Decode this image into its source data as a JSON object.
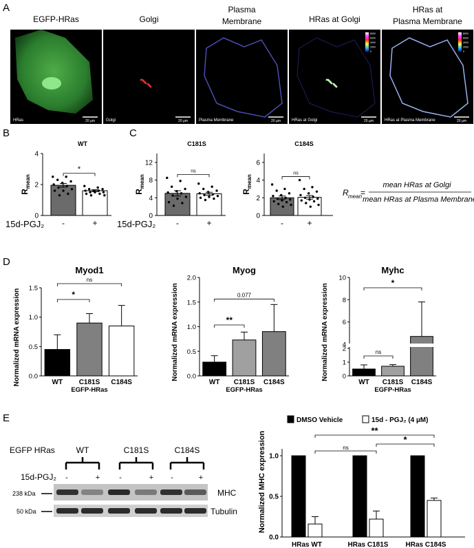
{
  "panels": {
    "a": "A",
    "b": "B",
    "c": "C",
    "d": "D",
    "e": "E"
  },
  "panel_a": {
    "titles": [
      [
        "EGFP-HRas"
      ],
      [
        "Golgi"
      ],
      [
        "Plasma",
        "Membrane"
      ],
      [
        "HRas at Golgi"
      ],
      [
        "HRas at",
        "Plasma Membrane"
      ]
    ],
    "captions": [
      "HRas",
      "Golgi",
      "Plasma Membrane",
      "HRas at Golgi",
      "HRas at Plasma Membrane"
    ],
    "scale_label": "20 µm",
    "colorbar_ticks": [
      "8000",
      "6000",
      "4000",
      "2000",
      "0"
    ]
  },
  "ylabel_r": "R",
  "ylabel_r_sub": "mean",
  "treatment_label": "15d-PGJ₂",
  "tick_minus": "-",
  "tick_plus": "+",
  "formula": {
    "lhs": "R",
    "lhs_sub": "mean",
    "eq": "=",
    "numerator": "mean HRas at Golgi",
    "denominator": "mean HRas at Plasma Membrane"
  },
  "chart_data": [
    {
      "type": "bar",
      "title": "WT",
      "categories": [
        "-",
        "+"
      ],
      "values": [
        1.95,
        1.6
      ],
      "errors": [
        0.12,
        0.06
      ],
      "ylim": [
        0,
        4
      ],
      "yticks": [
        "0",
        "2",
        "4"
      ],
      "sig": "*",
      "colors": [
        "#6b6b6b",
        "#ffffff"
      ],
      "points": [
        [
          2.5,
          2.5,
          2.3,
          2.2,
          2.1,
          2.0,
          1.9,
          1.8,
          1.7,
          1.6,
          1.6,
          1.4,
          1.3
        ],
        [
          1.9,
          1.8,
          1.7,
          1.7,
          1.6,
          1.6,
          1.6,
          1.5,
          1.5,
          1.5,
          1.4,
          1.4,
          1.3,
          1.3
        ]
      ]
    },
    {
      "type": "bar",
      "title": "C181S",
      "categories": [
        "-",
        "+"
      ],
      "values": [
        5.0,
        4.9
      ],
      "errors": [
        0.6,
        0.35
      ],
      "ylim": [
        0,
        14
      ],
      "yticks": [
        "0",
        "4",
        "8",
        "12"
      ],
      "sig": "ns",
      "colors": [
        "#6b6b6b",
        "#ffffff"
      ],
      "points": [
        [
          8.5,
          7.8,
          6.5,
          6.0,
          5.5,
          5.2,
          5.0,
          4.5,
          4.2,
          3.8,
          3.0,
          2.8,
          2.2
        ],
        [
          7.2,
          6.5,
          6.0,
          5.6,
          5.3,
          5.0,
          4.8,
          4.6,
          4.4,
          4.2,
          4.0,
          3.8,
          3.5
        ]
      ]
    },
    {
      "type": "bar",
      "title": "C184S",
      "categories": [
        "-",
        "+"
      ],
      "values": [
        2.0,
        2.05
      ],
      "errors": [
        0.2,
        0.2
      ],
      "ylim": [
        0,
        7
      ],
      "yticks": [
        "0",
        "2",
        "4",
        "6"
      ],
      "sig": "ns",
      "colors": [
        "#6b6b6b",
        "#ffffff"
      ],
      "points": [
        [
          3.5,
          3.0,
          2.8,
          2.5,
          2.3,
          2.2,
          2.0,
          1.9,
          1.8,
          1.7,
          1.6,
          1.5,
          1.3,
          1.2,
          1.0
        ],
        [
          4.0,
          3.2,
          3.0,
          2.7,
          2.5,
          2.3,
          2.1,
          2.0,
          1.9,
          1.8,
          1.7,
          1.6,
          1.4,
          1.2,
          1.0
        ]
      ]
    },
    {
      "type": "bar",
      "title": "Myod1",
      "xlabel": "EGFP-HRas",
      "ylabel": "Normalized mRNA expression",
      "categories": [
        "WT",
        "C181S",
        "C184S"
      ],
      "values": [
        0.45,
        0.9,
        0.85
      ],
      "errors": [
        0.25,
        0.16,
        0.35
      ],
      "ylim": [
        0,
        1.5
      ],
      "yticks": [
        "0.0",
        "0.5",
        "1.0",
        "1.5"
      ],
      "colors": [
        "#000000",
        "#808080",
        "#ffffff"
      ],
      "brackets": [
        {
          "label": "*",
          "from": 0,
          "to": 1
        },
        {
          "label": "ns",
          "from": 0,
          "to": 2
        }
      ]
    },
    {
      "type": "bar",
      "title": "Myog",
      "xlabel": "EGFP-HRas",
      "ylabel": "Normalized mRNA expression",
      "categories": [
        "WT",
        "C181S",
        "C184S"
      ],
      "values": [
        0.28,
        0.73,
        0.9
      ],
      "errors": [
        0.13,
        0.16,
        0.55
      ],
      "ylim": [
        0,
        2.0
      ],
      "yticks": [
        "0.0",
        "0.5",
        "1.0",
        "1.5",
        "2.0"
      ],
      "colors": [
        "#000000",
        "#a0a0a0",
        "#808080"
      ],
      "brackets": [
        {
          "label": "**",
          "from": 0,
          "to": 1
        },
        {
          "label": "0.077",
          "from": 0,
          "to": 2
        }
      ]
    },
    {
      "type": "bar",
      "title": "Myhc",
      "xlabel": "EGFP-HRas",
      "ylabel": "Normalized mRNA expression",
      "categories": [
        "WT",
        "C181S",
        "C184S"
      ],
      "values": [
        0.5,
        0.7,
        4.7
      ],
      "errors": [
        0.3,
        0.12,
        3.1
      ],
      "yaxis": "broken",
      "yticks": [
        "0",
        "1",
        "2",
        "4",
        "6",
        "8",
        "10"
      ],
      "colors": [
        "#000000",
        "#a0a0a0",
        "#808080"
      ],
      "brackets": [
        {
          "label": "ns",
          "from": 0,
          "to": 1
        },
        {
          "label": "*",
          "from": 0,
          "to": 2
        }
      ]
    },
    {
      "type": "bar",
      "ylabel": "Normalized MHC expression",
      "categories": [
        "HRas WT",
        "HRas C181S",
        "HRas C184S"
      ],
      "series": [
        {
          "name": "DMSO Vehicle",
          "values": [
            1.0,
            1.0,
            1.0
          ],
          "errors": [
            0,
            0,
            0
          ],
          "color": "#000000"
        },
        {
          "name": "15d - PGJ₂ (4 µM)",
          "values": [
            0.16,
            0.22,
            0.45
          ],
          "errors": [
            0.09,
            0.1,
            0.03
          ],
          "color": "#ffffff"
        }
      ],
      "ylim": [
        0,
        1.0
      ],
      "yticks": [
        "0.0",
        "0.5",
        "1.0"
      ],
      "brackets": [
        {
          "label": "ns",
          "from": 0,
          "to": 1
        },
        {
          "label": "*",
          "from": 1,
          "to": 2
        },
        {
          "label": "**",
          "from": 0,
          "to": 2
        }
      ]
    }
  ],
  "blot": {
    "row_label": "EGFP HRas",
    "groups": [
      "WT",
      "C181S",
      "C184S"
    ],
    "treatment_label": "15d-PGJ₂",
    "lane_signs": [
      "-",
      "+",
      "-",
      "+",
      "-",
      "+"
    ],
    "markers": [
      "238 kDa",
      "50 kDa"
    ],
    "bands": [
      "MHC",
      "Tubulin"
    ]
  }
}
